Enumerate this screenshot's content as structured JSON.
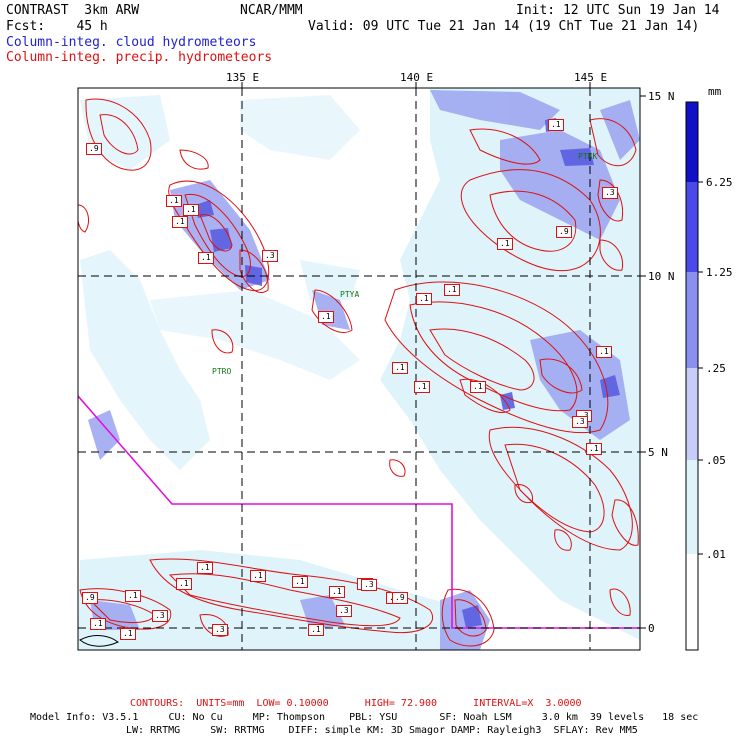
{
  "header": {
    "left1": "CONTRAST  3km ARW",
    "left2": "Fcst:    45 h",
    "center": "NCAR/MMM",
    "init": "Init: 12 UTC Sun 19 Jan 14",
    "valid": "Valid: 09 UTC Tue 21 Jan 14 (19 ChT Tue 21 Jan 14)",
    "field1": "Column-integ. cloud hydrometeors",
    "field2": "Column-integ. precip. hydrometeors"
  },
  "map": {
    "lon_labels": [
      "135 E",
      "140 E",
      "145 E"
    ],
    "lat_labels": [
      "15 N",
      "10 N",
      "5 N",
      "0"
    ],
    "stations": [
      "PTYA",
      "PTRO",
      "PTKK"
    ],
    "contour_labels": [
      ".9",
      ".1",
      ".1",
      ".1",
      ".1",
      ".3",
      ".1",
      ".1",
      ".1",
      ".1",
      ".1",
      ".1",
      ".9",
      ".1",
      ".3",
      ".1",
      ".3",
      ".1",
      ".1",
      ".1",
      ".1",
      ".1",
      ".1",
      ".3",
      ".3",
      ".9",
      ".1",
      ".3",
      ".1",
      ".3",
      ".9",
      ".1",
      ".1",
      ".3",
      ".1",
      ".1",
      ".3"
    ],
    "colors": {
      "cloud_light": "#dff3fb",
      "cloud_mid": "#9aa3f0",
      "cloud_dark": "#5b5ee0",
      "contour": "#dd1111",
      "boundary": "#e011e0"
    }
  },
  "colorbar": {
    "unit": "mm",
    "levels": [
      "6.25",
      "1.25",
      ".25",
      ".05",
      ".01"
    ],
    "colors": [
      "#1010c8",
      "#4a4ae8",
      "#8a90f0",
      "#c8ccf8",
      "#dff3fb",
      "#ffffff"
    ]
  },
  "footer": {
    "contours": "CONTOURS:  UNITS=mm  LOW= 0.10000      HIGH= 72.900      INTERVAL=X  3.0000",
    "model1": "Model Info: V3.5.1     CU: No Cu     MP: Thompson    PBL: YSU       SF: Noah LSM     3.0 km  39 levels   18 sec",
    "model2": "LW: RRTMG     SW: RRTMG    DIFF: simple KM: 3D Smagor DAMP: Rayleigh3  SFLAY: Rev MM5"
  }
}
